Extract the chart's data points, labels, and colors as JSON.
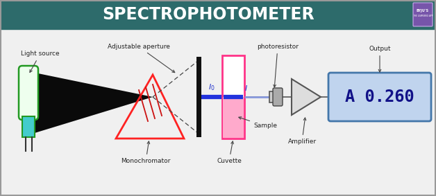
{
  "title": "SPECTROPHOTOMETER",
  "title_bg": "#2d6b6b",
  "title_color": "#ffffff",
  "bg_color": "#f0f0f0",
  "labels": {
    "light_source": "Light source",
    "adjustable_aperture": "Adjustable aperture",
    "monochromator": "Monochromator",
    "cuvette": "Cuvette",
    "sample": "Sample",
    "photoresistor": "photoresistor",
    "amplifier": "Amplifier",
    "output": "Output",
    "display": "A 0.260"
  },
  "colors": {
    "light_source_top": "#55cc55",
    "light_source_top_inner": "#eeffee",
    "light_source_bottom": "#44cccc",
    "light_source_border": "#229922",
    "mono_triangle": "#ff2222",
    "mono_lines": "#cc1111",
    "beam_black_fill": "#111111",
    "beam_blue": "#2233dd",
    "beam_blue_thin": "#8899dd",
    "dashed_line": "#444444",
    "slit": "#111111",
    "cuvette_border": "#ff3388",
    "cuvette_upper_fill": "#ffffff",
    "cuvette_lower_fill": "#ffaacc",
    "photo_body": "#888888",
    "photo_lens": "#aaaaaa",
    "amp_fill": "#dddddd",
    "amp_border": "#555555",
    "display_bg": "#c0d4ee",
    "display_border": "#4477aa",
    "display_text": "#111188",
    "label_color": "#222222",
    "arrow_color": "#444444",
    "logo_bg": "#7755aa",
    "connector": "#555555"
  },
  "logo_text1": "BYJU'S",
  "logo_text2": "THE LEARNING APP"
}
